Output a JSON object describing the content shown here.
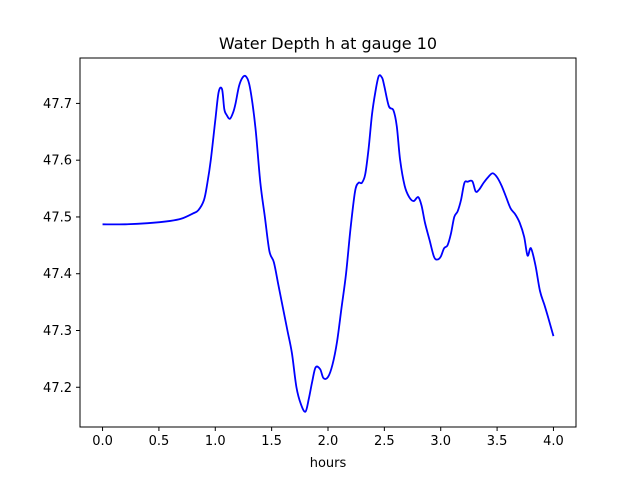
{
  "chart_data": {
    "type": "line",
    "title": "Water Depth h at gauge 10",
    "xlabel": "hours",
    "ylabel": "",
    "xlim": [
      -0.2,
      4.2
    ],
    "ylim": [
      47.13,
      47.78
    ],
    "xticks": [
      0.0,
      0.5,
      1.0,
      1.5,
      2.0,
      2.5,
      3.0,
      3.5,
      4.0
    ],
    "xtick_labels": [
      "0.0",
      "0.5",
      "1.0",
      "1.5",
      "2.0",
      "2.5",
      "3.0",
      "3.5",
      "4.0"
    ],
    "yticks": [
      47.2,
      47.3,
      47.4,
      47.5,
      47.6,
      47.7
    ],
    "ytick_labels": [
      "47.2",
      "47.3",
      "47.4",
      "47.5",
      "47.6",
      "47.7"
    ],
    "grid": false,
    "legend": "none",
    "series": [
      {
        "color": "#0000ff",
        "x": [
          0.0,
          0.2,
          0.4,
          0.6,
          0.7,
          0.8,
          0.85,
          0.9,
          0.93,
          0.96,
          1.0,
          1.03,
          1.06,
          1.08,
          1.1,
          1.13,
          1.16,
          1.18,
          1.21,
          1.24,
          1.27,
          1.3,
          1.33,
          1.36,
          1.4,
          1.44,
          1.48,
          1.52,
          1.56,
          1.6,
          1.64,
          1.68,
          1.72,
          1.76,
          1.8,
          1.83,
          1.86,
          1.89,
          1.93,
          1.96,
          2.0,
          2.04,
          2.08,
          2.12,
          2.16,
          2.2,
          2.24,
          2.27,
          2.3,
          2.33,
          2.36,
          2.39,
          2.42,
          2.45,
          2.48,
          2.5,
          2.54,
          2.58,
          2.61,
          2.64,
          2.68,
          2.72,
          2.76,
          2.8,
          2.83,
          2.86,
          2.9,
          2.94,
          2.97,
          3.0,
          3.03,
          3.06,
          3.09,
          3.12,
          3.15,
          3.18,
          3.21,
          3.24,
          3.28,
          3.31,
          3.34,
          3.38,
          3.42,
          3.46,
          3.5,
          3.54,
          3.58,
          3.62,
          3.66,
          3.7,
          3.74,
          3.77,
          3.8,
          3.84,
          3.88,
          3.92,
          3.95,
          4.0
        ],
        "y": [
          47.487,
          47.487,
          47.489,
          47.493,
          47.497,
          47.506,
          47.512,
          47.53,
          47.56,
          47.6,
          47.67,
          47.72,
          47.725,
          47.69,
          47.68,
          47.673,
          47.685,
          47.7,
          47.73,
          47.745,
          47.748,
          47.735,
          47.7,
          47.65,
          47.56,
          47.5,
          47.44,
          47.42,
          47.38,
          47.34,
          47.3,
          47.26,
          47.2,
          47.17,
          47.157,
          47.18,
          47.21,
          47.235,
          47.232,
          47.216,
          47.218,
          47.24,
          47.28,
          47.34,
          47.4,
          47.48,
          47.545,
          47.56,
          47.56,
          47.575,
          47.62,
          47.68,
          47.72,
          47.748,
          47.745,
          47.73,
          47.695,
          47.688,
          47.66,
          47.6,
          47.555,
          47.535,
          47.528,
          47.535,
          47.52,
          47.49,
          47.46,
          47.43,
          47.425,
          47.43,
          47.445,
          47.45,
          47.47,
          47.5,
          47.51,
          47.53,
          47.56,
          47.562,
          47.563,
          47.545,
          47.548,
          47.56,
          47.57,
          47.577,
          47.57,
          47.555,
          47.535,
          47.515,
          47.505,
          47.49,
          47.465,
          47.432,
          47.445,
          47.415,
          47.37,
          47.345,
          47.325,
          47.29
        ]
      }
    ]
  }
}
